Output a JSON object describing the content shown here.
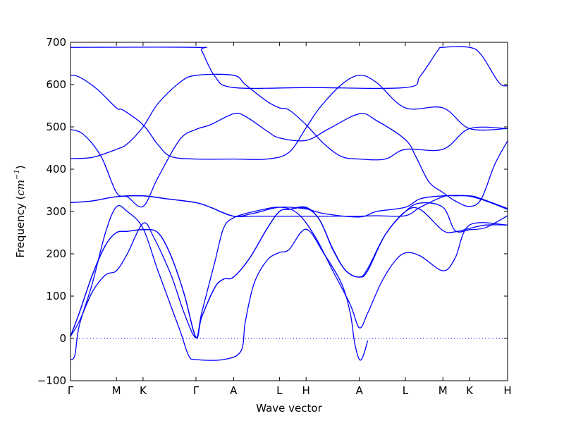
{
  "chart_data": {
    "type": "line",
    "xlabel": "Wave vector",
    "ylabel_prefix": "Frequency (",
    "ylabel_unit": "cm",
    "ylabel_exp": "−1",
    "ylabel_suffix": ")",
    "ylim": [
      -100,
      700
    ],
    "yticks": [
      -100,
      0,
      100,
      200,
      300,
      400,
      500,
      600,
      700
    ],
    "ytick_labels": [
      "−100",
      "0",
      "100",
      "200",
      "300",
      "400",
      "500",
      "600",
      "700"
    ],
    "xlim": [
      0,
      1
    ],
    "high_symmetry_points": [
      {
        "label": "Γ",
        "x": 0.0
      },
      {
        "label": "M",
        "x": 0.105
      },
      {
        "label": "K",
        "x": 0.166
      },
      {
        "label": "Γ",
        "x": 0.287
      },
      {
        "label": "A",
        "x": 0.373
      },
      {
        "label": "L",
        "x": 0.478
      },
      {
        "label": "H",
        "x": 0.539
      },
      {
        "label": "A",
        "x": 0.661
      },
      {
        "label": "L",
        "x": 0.766
      },
      {
        "label": "M",
        "x": 0.852
      },
      {
        "label": "K",
        "x": 0.913
      },
      {
        "label": "H",
        "x": 1.0
      }
    ],
    "zero_line": {
      "y": 0,
      "style": "dotted"
    },
    "line_color": "#0000ff",
    "series": [
      {
        "points": [
          [
            0,
            688
          ],
          [
            0.287,
            688
          ],
          [
            0.3,
            680
          ],
          [
            0.33,
            620
          ],
          [
            0.373,
            593
          ],
          [
            0.55,
            593
          ],
          [
            0.766,
            593
          ],
          [
            0.8,
            620
          ],
          [
            0.84,
            680
          ],
          [
            0.852,
            688
          ],
          [
            0.913,
            688
          ],
          [
            0.94,
            670
          ],
          [
            0.98,
            605
          ],
          [
            1.0,
            597
          ]
        ]
      },
      {
        "points": [
          [
            0,
            622
          ],
          [
            0.02,
            618
          ],
          [
            0.06,
            590
          ],
          [
            0.105,
            545
          ],
          [
            0.12,
            540
          ],
          [
            0.166,
            505
          ],
          [
            0.2,
            458
          ],
          [
            0.23,
            430
          ],
          [
            0.287,
            424
          ],
          [
            0.373,
            424
          ],
          [
            0.45,
            424
          ],
          [
            0.5,
            440
          ],
          [
            0.539,
            498
          ],
          [
            0.57,
            545
          ],
          [
            0.62,
            600
          ],
          [
            0.661,
            622
          ],
          [
            0.7,
            605
          ],
          [
            0.766,
            545
          ],
          [
            0.852,
            545
          ],
          [
            0.913,
            496
          ],
          [
            1.0,
            496
          ]
        ]
      },
      {
        "points": [
          [
            0,
            425
          ],
          [
            0.05,
            428
          ],
          [
            0.105,
            447
          ],
          [
            0.13,
            460
          ],
          [
            0.166,
            500
          ],
          [
            0.2,
            555
          ],
          [
            0.25,
            605
          ],
          [
            0.287,
            622
          ],
          [
            0.373,
            622
          ],
          [
            0.4,
            600
          ],
          [
            0.45,
            560
          ],
          [
            0.478,
            545
          ],
          [
            0.5,
            540
          ],
          [
            0.539,
            505
          ],
          [
            0.58,
            460
          ],
          [
            0.62,
            430
          ],
          [
            0.661,
            424
          ],
          [
            0.72,
            424
          ],
          [
            0.766,
            447
          ],
          [
            0.852,
            447
          ],
          [
            0.913,
            496
          ],
          [
            1.0,
            496
          ]
        ]
      },
      {
        "points": [
          [
            0,
            494
          ],
          [
            0.03,
            482
          ],
          [
            0.07,
            430
          ],
          [
            0.105,
            345
          ],
          [
            0.13,
            335
          ],
          [
            0.166,
            312
          ],
          [
            0.2,
            380
          ],
          [
            0.25,
            470
          ],
          [
            0.287,
            494
          ],
          [
            0.32,
            505
          ],
          [
            0.373,
            531
          ],
          [
            0.4,
            525
          ],
          [
            0.45,
            490
          ],
          [
            0.478,
            474
          ],
          [
            0.539,
            468
          ],
          [
            0.59,
            495
          ],
          [
            0.661,
            531
          ],
          [
            0.7,
            515
          ],
          [
            0.766,
            470
          ],
          [
            0.79,
            430
          ],
          [
            0.82,
            370
          ],
          [
            0.852,
            345
          ],
          [
            0.88,
            325
          ],
          [
            0.913,
            312
          ],
          [
            0.94,
            330
          ],
          [
            0.97,
            410
          ],
          [
            1.0,
            467
          ]
        ]
      },
      {
        "points": [
          [
            0,
            321
          ],
          [
            0.05,
            325
          ],
          [
            0.105,
            335
          ],
          [
            0.166,
            337
          ],
          [
            0.22,
            330
          ],
          [
            0.287,
            321
          ],
          [
            0.32,
            310
          ],
          [
            0.373,
            289
          ],
          [
            0.42,
            296
          ],
          [
            0.478,
            310
          ],
          [
            0.539,
            306
          ],
          [
            0.58,
            295
          ],
          [
            0.661,
            287
          ],
          [
            0.7,
            300
          ],
          [
            0.766,
            310
          ],
          [
            0.8,
            330
          ],
          [
            0.852,
            337
          ],
          [
            0.913,
            337
          ],
          [
            0.94,
            330
          ],
          [
            1.0,
            307
          ]
        ]
      },
      {
        "points": [
          [
            0,
            321
          ],
          [
            0.05,
            325
          ],
          [
            0.105,
            335
          ],
          [
            0.166,
            337
          ],
          [
            0.22,
            330
          ],
          [
            0.287,
            321
          ],
          [
            0.32,
            310
          ],
          [
            0.373,
            289
          ],
          [
            0.42,
            289
          ],
          [
            0.478,
            289
          ],
          [
            0.539,
            289
          ],
          [
            0.6,
            289
          ],
          [
            0.661,
            289
          ],
          [
            0.7,
            290
          ],
          [
            0.766,
            290
          ],
          [
            0.8,
            310
          ],
          [
            0.852,
            335
          ],
          [
            0.88,
            337
          ],
          [
            0.913,
            336
          ],
          [
            0.95,
            325
          ],
          [
            1.0,
            305
          ]
        ]
      },
      {
        "points": [
          [
            0,
            5
          ],
          [
            0.02,
            60
          ],
          [
            0.05,
            150
          ],
          [
            0.08,
            220
          ],
          [
            0.105,
            250
          ],
          [
            0.13,
            253
          ],
          [
            0.166,
            257
          ],
          [
            0.2,
            250
          ],
          [
            0.23,
            195
          ],
          [
            0.26,
            105
          ],
          [
            0.287,
            2
          ],
          [
            0.3,
            50
          ],
          [
            0.33,
            120
          ],
          [
            0.35,
            140
          ],
          [
            0.373,
            145
          ],
          [
            0.41,
            190
          ],
          [
            0.45,
            260
          ],
          [
            0.478,
            300
          ],
          [
            0.5,
            305
          ],
          [
            0.539,
            310
          ],
          [
            0.57,
            280
          ],
          [
            0.6,
            210
          ],
          [
            0.63,
            160
          ],
          [
            0.661,
            145
          ],
          [
            0.68,
            160
          ],
          [
            0.72,
            245
          ],
          [
            0.766,
            300
          ],
          [
            0.8,
            320
          ],
          [
            0.852,
            310
          ],
          [
            0.88,
            255
          ],
          [
            0.913,
            257
          ],
          [
            0.95,
            262
          ],
          [
            1.0,
            290
          ]
        ]
      },
      {
        "points": [
          [
            0,
            5
          ],
          [
            0.02,
            60
          ],
          [
            0.05,
            150
          ],
          [
            0.08,
            220
          ],
          [
            0.105,
            250
          ],
          [
            0.13,
            253
          ],
          [
            0.166,
            257
          ],
          [
            0.2,
            250
          ],
          [
            0.23,
            195
          ],
          [
            0.26,
            105
          ],
          [
            0.287,
            2
          ],
          [
            0.3,
            50
          ],
          [
            0.33,
            120
          ],
          [
            0.35,
            140
          ],
          [
            0.373,
            145
          ],
          [
            0.41,
            190
          ],
          [
            0.45,
            260
          ],
          [
            0.478,
            300
          ],
          [
            0.5,
            305
          ],
          [
            0.539,
            308
          ],
          [
            0.57,
            280
          ],
          [
            0.6,
            212
          ],
          [
            0.63,
            160
          ],
          [
            0.661,
            145
          ],
          [
            0.68,
            165
          ],
          [
            0.72,
            245
          ],
          [
            0.766,
            300
          ],
          [
            0.8,
            305
          ],
          [
            0.852,
            255
          ],
          [
            0.88,
            252
          ],
          [
            0.913,
            260
          ],
          [
            0.95,
            268
          ],
          [
            1.0,
            268
          ]
        ]
      },
      {
        "points": [
          [
            0,
            5
          ],
          [
            0.02,
            40
          ],
          [
            0.05,
            110
          ],
          [
            0.08,
            150
          ],
          [
            0.105,
            160
          ],
          [
            0.13,
            200
          ],
          [
            0.166,
            272
          ],
          [
            0.19,
            240
          ],
          [
            0.23,
            150
          ],
          [
            0.26,
            60
          ],
          [
            0.287,
            2
          ],
          [
            0.3,
            60
          ],
          [
            0.33,
            180
          ],
          [
            0.35,
            260
          ],
          [
            0.373,
            285
          ],
          [
            0.42,
            300
          ],
          [
            0.478,
            310
          ],
          [
            0.52,
            295
          ],
          [
            0.56,
            240
          ],
          [
            0.6,
            160
          ],
          [
            0.64,
            80
          ],
          [
            0.661,
            25
          ],
          [
            0.68,
            60
          ],
          [
            0.71,
            130
          ],
          [
            0.74,
            180
          ],
          [
            0.766,
            202
          ],
          [
            0.8,
            195
          ],
          [
            0.852,
            160
          ],
          [
            0.88,
            190
          ],
          [
            0.913,
            268
          ],
          [
            1.0,
            268
          ]
        ]
      },
      {
        "points": [
          [
            0,
            -50
          ],
          [
            0.01,
            -40
          ],
          [
            0.02,
            30
          ],
          [
            0.05,
            130
          ],
          [
            0.08,
            250
          ],
          [
            0.105,
            311
          ],
          [
            0.13,
            300
          ],
          [
            0.166,
            260
          ],
          [
            0.2,
            160
          ],
          [
            0.25,
            20
          ],
          [
            0.27,
            -40
          ],
          [
            0.287,
            -50
          ],
          [
            0.35,
            -50
          ],
          [
            0.39,
            -30
          ],
          [
            0.4,
            40
          ],
          [
            0.42,
            130
          ],
          [
            0.45,
            185
          ],
          [
            0.478,
            203
          ],
          [
            0.5,
            210
          ],
          [
            0.539,
            258
          ],
          [
            0.58,
            200
          ],
          [
            0.62,
            130
          ],
          [
            0.64,
            60
          ],
          [
            0.65,
            -10
          ],
          [
            0.661,
            -50
          ],
          [
            0.67,
            -40
          ],
          [
            0.68,
            -5
          ]
        ]
      }
    ]
  }
}
